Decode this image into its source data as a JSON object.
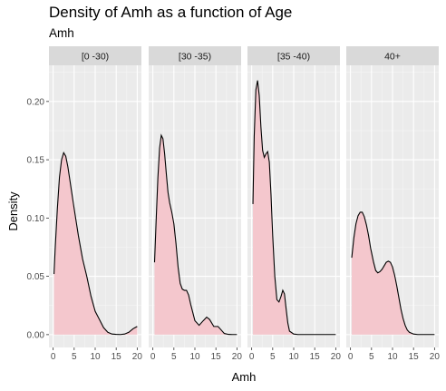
{
  "title": "Density of Amh as a function of Age",
  "subtitle": "Amh",
  "chart_data": {
    "type": "area",
    "xlabel": "Amh",
    "ylabel": "Density",
    "xlim": [
      0,
      20
    ],
    "ylim": [
      0,
      0.22
    ],
    "x_ticks": [
      0,
      5,
      10,
      15,
      20
    ],
    "y_ticks": [
      0.0,
      0.05,
      0.1,
      0.15,
      0.2
    ],
    "y_tick_labels": [
      "0.00",
      "0.05",
      "0.10",
      "0.15",
      "0.20"
    ],
    "grid": true,
    "fill_color": "#f4c7cd",
    "line_color": "#000000",
    "panel_bg": "#ebebeb",
    "strip_bg": "#d9d9d9",
    "panels": [
      {
        "label": "[0 -30)",
        "x": [
          0.2,
          0.5,
          1.0,
          1.5,
          2.0,
          2.5,
          3.0,
          3.5,
          4.0,
          5.0,
          6.0,
          7.0,
          8.0,
          9.0,
          10.0,
          11.0,
          12.0,
          13.0,
          14.0,
          15.0,
          16.0,
          17.0,
          18.0,
          19.0,
          19.5,
          20.0
        ],
        "y": [
          0.052,
          0.075,
          0.108,
          0.135,
          0.15,
          0.156,
          0.153,
          0.144,
          0.132,
          0.108,
          0.085,
          0.065,
          0.05,
          0.033,
          0.02,
          0.013,
          0.006,
          0.002,
          0.0005,
          0.0002,
          0.0001,
          0.0005,
          0.002,
          0.005,
          0.006,
          0.007
        ]
      },
      {
        "label": "[30 -35)",
        "x": [
          0.4,
          0.8,
          1.2,
          1.6,
          2.0,
          2.4,
          2.8,
          3.2,
          3.6,
          4.0,
          4.5,
          5.0,
          5.5,
          6.0,
          6.5,
          7.0,
          7.5,
          8.0,
          8.5,
          9.0,
          10.0,
          11.0,
          12.0,
          12.8,
          13.5,
          14.5,
          15.5,
          16.0,
          17.0,
          18.0,
          19.0,
          20.0
        ],
        "y": [
          0.062,
          0.1,
          0.135,
          0.16,
          0.171,
          0.168,
          0.155,
          0.138,
          0.122,
          0.113,
          0.105,
          0.095,
          0.078,
          0.058,
          0.044,
          0.039,
          0.038,
          0.038,
          0.034,
          0.026,
          0.012,
          0.008,
          0.012,
          0.015,
          0.013,
          0.007,
          0.007,
          0.005,
          0.001,
          0.0002,
          0.0001,
          0.0001
        ]
      },
      {
        "label": "[35 -40)",
        "x": [
          0.3,
          0.6,
          1.0,
          1.4,
          1.8,
          2.2,
          2.6,
          3.0,
          3.4,
          3.8,
          4.2,
          4.6,
          5.0,
          5.5,
          6.0,
          6.5,
          7.0,
          7.4,
          7.8,
          8.2,
          8.6,
          9.0,
          10.0,
          11.0,
          12.0,
          14.0,
          17.0,
          20.0
        ],
        "y": [
          0.112,
          0.17,
          0.21,
          0.218,
          0.205,
          0.178,
          0.158,
          0.152,
          0.155,
          0.157,
          0.148,
          0.12,
          0.085,
          0.05,
          0.03,
          0.028,
          0.033,
          0.038,
          0.035,
          0.022,
          0.01,
          0.003,
          0.0005,
          0.0001,
          0.0001,
          0.0001,
          0.0001,
          0.0001
        ]
      },
      {
        "label": "40+",
        "x": [
          0.3,
          0.8,
          1.3,
          1.8,
          2.3,
          2.8,
          3.3,
          3.8,
          4.3,
          4.8,
          5.5,
          6.0,
          6.5,
          7.0,
          7.5,
          8.0,
          8.5,
          9.0,
          9.5,
          10.0,
          10.5,
          11.0,
          11.5,
          12.0,
          12.5,
          13.0,
          13.5,
          14.0,
          15.0,
          16.0,
          17.0,
          18.0,
          19.0,
          20.0
        ],
        "y": [
          0.066,
          0.083,
          0.095,
          0.102,
          0.105,
          0.105,
          0.101,
          0.094,
          0.085,
          0.074,
          0.062,
          0.055,
          0.053,
          0.054,
          0.056,
          0.059,
          0.062,
          0.063,
          0.062,
          0.058,
          0.051,
          0.042,
          0.032,
          0.022,
          0.014,
          0.008,
          0.004,
          0.002,
          0.0005,
          0.0001,
          0.0001,
          0.0001,
          0.0001,
          0.0001
        ]
      }
    ]
  }
}
